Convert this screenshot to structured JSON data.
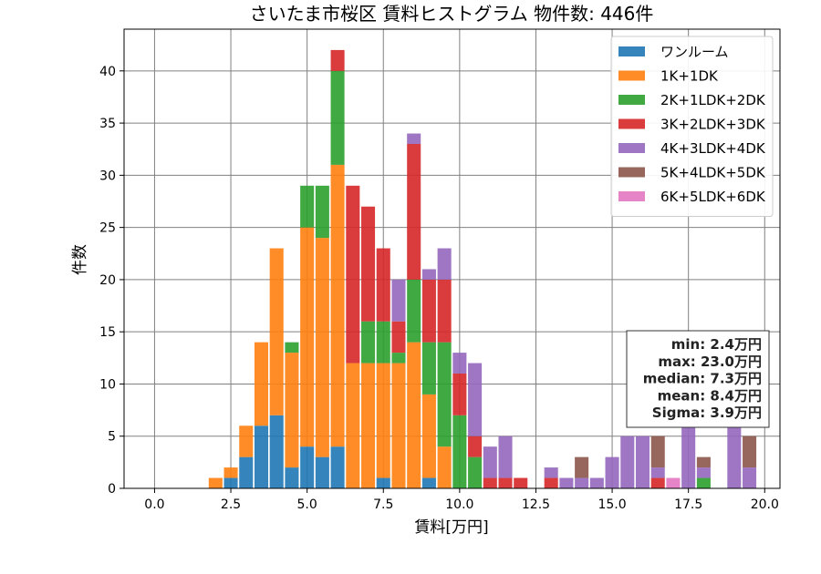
{
  "chart_data": {
    "type": "bar",
    "stacked": true,
    "title": "さいたま市桜区 賃料ヒストグラム 物件数: 446件",
    "xlabel": "賃料[万円]",
    "ylabel": "件数",
    "xlim": [
      -1.0,
      20.5
    ],
    "ylim": [
      0,
      44
    ],
    "xticks": [
      0.0,
      2.5,
      5.0,
      7.5,
      10.0,
      12.5,
      15.0,
      17.5,
      20.0
    ],
    "xtick_labels": [
      "0.0",
      "2.5",
      "5.0",
      "7.5",
      "10.0",
      "12.5",
      "15.0",
      "17.5",
      "20.0"
    ],
    "yticks": [
      0,
      5,
      10,
      15,
      20,
      25,
      30,
      35,
      40
    ],
    "ytick_labels": [
      "0",
      "5",
      "10",
      "15",
      "20",
      "25",
      "30",
      "35",
      "40"
    ],
    "grid": true,
    "legend_position": "top-right",
    "bin_width": 0.5,
    "x": [
      2.0,
      2.5,
      3.0,
      3.5,
      4.0,
      4.5,
      5.0,
      5.5,
      6.0,
      6.5,
      7.0,
      7.5,
      8.0,
      8.5,
      9.0,
      9.5,
      10.0,
      10.5,
      11.0,
      11.5,
      12.0,
      12.5,
      13.0,
      13.5,
      14.0,
      14.5,
      15.0,
      15.5,
      16.0,
      16.5,
      17.0,
      17.5,
      18.0,
      18.5,
      19.0,
      19.5
    ],
    "series": [
      {
        "name": "ワンルーム",
        "color": "#1f77b4",
        "values": [
          0,
          1,
          3,
          6,
          7,
          2,
          4,
          3,
          4,
          0,
          0,
          1,
          0,
          0,
          1,
          0,
          0,
          0,
          0,
          0,
          0,
          0,
          0,
          0,
          0,
          0,
          0,
          0,
          0,
          0,
          0,
          0,
          0,
          0,
          0,
          0
        ]
      },
      {
        "name": "1K+1DK",
        "color": "#ff7f0e",
        "values": [
          1,
          1,
          3,
          8,
          16,
          11,
          21,
          21,
          27,
          12,
          12,
          11,
          12,
          14,
          8,
          4,
          0,
          0,
          0,
          0,
          0,
          0,
          0,
          0,
          0,
          0,
          0,
          0,
          0,
          0,
          0,
          0,
          0,
          0,
          0,
          0
        ]
      },
      {
        "name": "2K+1LDK+2DK",
        "color": "#2ca02c",
        "values": [
          0,
          0,
          0,
          0,
          0,
          1,
          4,
          5,
          9,
          0,
          4,
          4,
          1,
          6,
          5,
          10,
          7,
          3,
          0,
          0,
          0,
          0,
          0,
          0,
          0,
          0,
          0,
          0,
          0,
          0,
          0,
          0,
          1,
          0,
          0,
          0
        ]
      },
      {
        "name": "3K+2LDK+3DK",
        "color": "#d62728",
        "values": [
          0,
          0,
          0,
          0,
          0,
          0,
          0,
          0,
          2,
          17,
          11,
          7,
          3,
          13,
          6,
          6,
          4,
          2,
          1,
          1,
          1,
          0,
          1,
          0,
          0,
          0,
          0,
          0,
          0,
          1,
          0,
          0,
          0,
          0,
          0,
          0
        ]
      },
      {
        "name": "4K+3LDK+4DK",
        "color": "#9467bd",
        "values": [
          0,
          0,
          0,
          0,
          0,
          0,
          0,
          0,
          0,
          0,
          0,
          0,
          4,
          1,
          1,
          3,
          2,
          7,
          3,
          4,
          0,
          0,
          1,
          1,
          1,
          1,
          3,
          5,
          5,
          1,
          0,
          6,
          1,
          0,
          7,
          2
        ]
      },
      {
        "name": "5K+4LDK+5DK",
        "color": "#8c564b",
        "values": [
          0,
          0,
          0,
          0,
          0,
          0,
          0,
          0,
          0,
          0,
          0,
          0,
          0,
          0,
          0,
          0,
          0,
          0,
          0,
          0,
          0,
          0,
          0,
          0,
          2,
          0,
          0,
          0,
          0,
          3,
          0,
          0,
          1,
          0,
          0,
          3
        ]
      },
      {
        "name": "6K+5LDK+6DK",
        "color": "#e377c2",
        "values": [
          0,
          0,
          0,
          0,
          0,
          0,
          0,
          0,
          0,
          0,
          0,
          0,
          0,
          0,
          0,
          0,
          0,
          0,
          0,
          0,
          0,
          0,
          0,
          0,
          0,
          0,
          0,
          0,
          0,
          0,
          1,
          0,
          0,
          0,
          0,
          0
        ]
      }
    ],
    "stats_box": {
      "lines": [
        "min: 2.4万円",
        "max: 23.0万円",
        "median: 7.3万円",
        "mean: 8.4万円",
        "Sigma: 3.9万円"
      ]
    }
  }
}
